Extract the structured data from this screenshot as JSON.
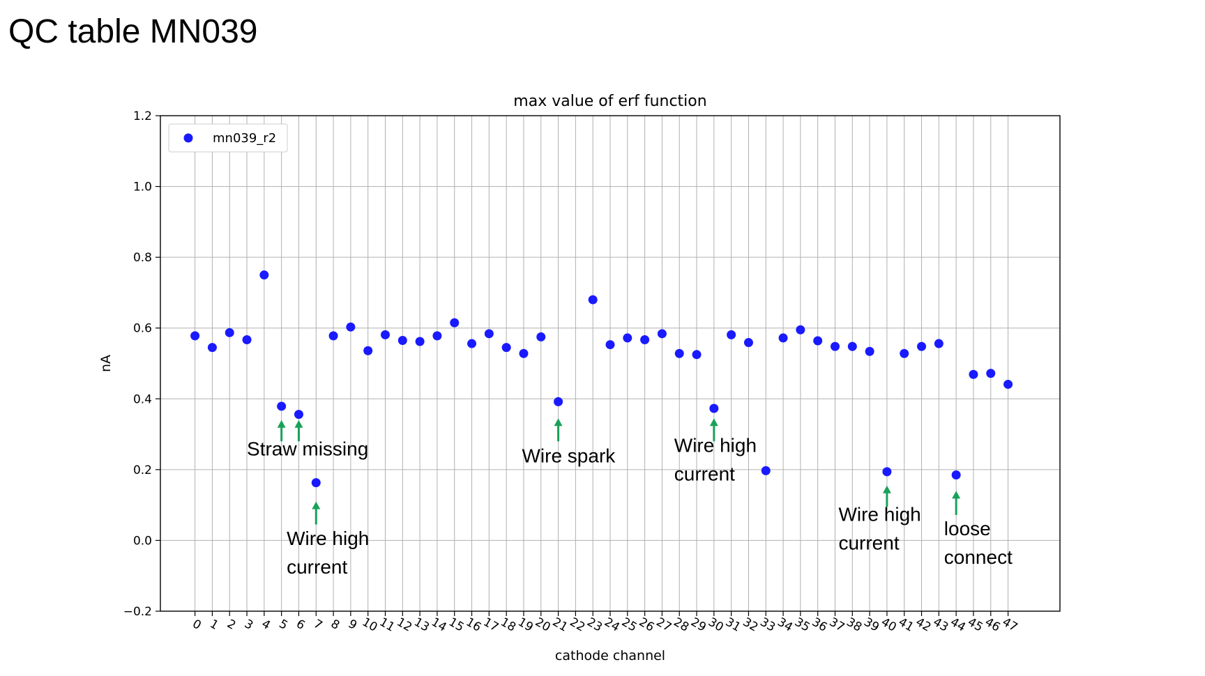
{
  "slide": {
    "title": "QC table MN039"
  },
  "chart_data": {
    "type": "scatter",
    "title": "max value of erf function",
    "xlabel": "cathode channel",
    "ylabel": "nA",
    "xlim": [
      -2,
      50
    ],
    "ylim": [
      -0.2,
      1.2
    ],
    "yticks": [
      -0.2,
      0.0,
      0.2,
      0.4,
      0.6,
      0.8,
      1.0,
      1.2
    ],
    "ytick_labels": [
      "−0.2",
      "0.0",
      "0.2",
      "0.4",
      "0.6",
      "0.8",
      "1.0",
      "1.2"
    ],
    "xticks": [
      0,
      1,
      2,
      3,
      4,
      5,
      6,
      7,
      8,
      9,
      10,
      11,
      12,
      13,
      14,
      15,
      16,
      17,
      18,
      19,
      20,
      21,
      22,
      23,
      24,
      25,
      26,
      27,
      28,
      29,
      30,
      31,
      32,
      33,
      34,
      35,
      36,
      37,
      38,
      39,
      40,
      41,
      42,
      43,
      44,
      45,
      46,
      47
    ],
    "grid": true,
    "legend_position": "upper-left",
    "series": [
      {
        "name": "mn039_r2",
        "color": "#1a1aff",
        "x": [
          0,
          1,
          2,
          3,
          4,
          5,
          6,
          7,
          8,
          9,
          10,
          11,
          12,
          13,
          14,
          15,
          16,
          17,
          18,
          19,
          20,
          21,
          23,
          24,
          25,
          26,
          27,
          28,
          29,
          30,
          31,
          32,
          33,
          34,
          35,
          36,
          37,
          38,
          39,
          40,
          41,
          42,
          43,
          44,
          45,
          46,
          47
        ],
        "y": [
          0.578,
          0.545,
          0.587,
          0.567,
          0.75,
          0.379,
          0.356,
          0.163,
          0.578,
          0.603,
          0.536,
          0.581,
          0.565,
          0.562,
          0.578,
          0.615,
          0.556,
          0.584,
          0.545,
          0.528,
          0.575,
          0.392,
          0.68,
          0.553,
          0.572,
          0.567,
          0.584,
          0.528,
          0.525,
          0.373,
          0.581,
          0.559,
          0.197,
          0.572,
          0.595,
          0.564,
          0.548,
          0.548,
          0.534,
          0.194,
          0.528,
          0.548,
          0.556,
          0.185,
          0.469,
          0.472,
          0.441
        ]
      }
    ],
    "annotation_color": "#1aa15a",
    "annotations": [
      {
        "x": 5,
        "arrow_tip": 0.34,
        "arrow_base": 0.28,
        "label_lines": []
      },
      {
        "x": 6,
        "arrow_tip": 0.34,
        "arrow_base": 0.28,
        "label_lines": [
          "Straw missing"
        ],
        "label_x": 3.0,
        "label_y": 0.24
      },
      {
        "x": 7,
        "arrow_tip": 0.11,
        "arrow_base": 0.045,
        "label_lines": [
          "Wire high",
          "current"
        ],
        "label_x": 5.3,
        "label_y": -0.013
      },
      {
        "x": 21,
        "arrow_tip": 0.345,
        "arrow_base": 0.28,
        "label_lines": [
          "Wire spark"
        ],
        "label_x": 18.9,
        "label_y": 0.22
      },
      {
        "x": 30,
        "arrow_tip": 0.345,
        "arrow_base": 0.28,
        "label_lines": [
          "Wire high",
          "current"
        ],
        "label_x": 27.7,
        "label_y": 0.25
      },
      {
        "x": 40,
        "arrow_tip": 0.155,
        "arrow_base": 0.095,
        "label_lines": [
          "Wire high",
          "current"
        ],
        "label_x": 37.2,
        "label_y": 0.055
      },
      {
        "x": 44,
        "arrow_tip": 0.14,
        "arrow_base": 0.072,
        "label_lines": [
          "loose",
          "connect"
        ],
        "label_x": 43.3,
        "label_y": 0.015
      }
    ]
  }
}
